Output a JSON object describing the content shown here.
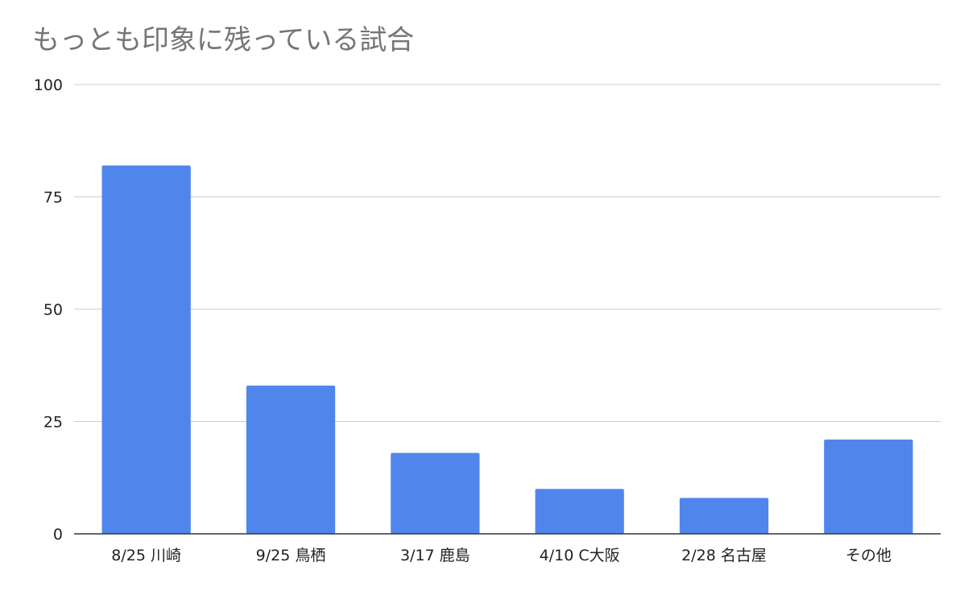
{
  "chart_data": {
    "type": "bar",
    "title": "もっとも印象に残っている試合",
    "categories": [
      "8/25 川崎",
      "9/25 鳥栖",
      "3/17 鹿島",
      "4/10 C大阪",
      "2/28 名古屋",
      "その他"
    ],
    "values": [
      82,
      33,
      18,
      10,
      8,
      21
    ],
    "ylim": [
      0,
      100
    ],
    "yticks": [
      0,
      25,
      50,
      75,
      100
    ],
    "grid": true,
    "legend": "none",
    "colors": {
      "bar": "#5086ec",
      "grid": "#cccccc",
      "axis": "#333333",
      "title": "#757575"
    }
  }
}
